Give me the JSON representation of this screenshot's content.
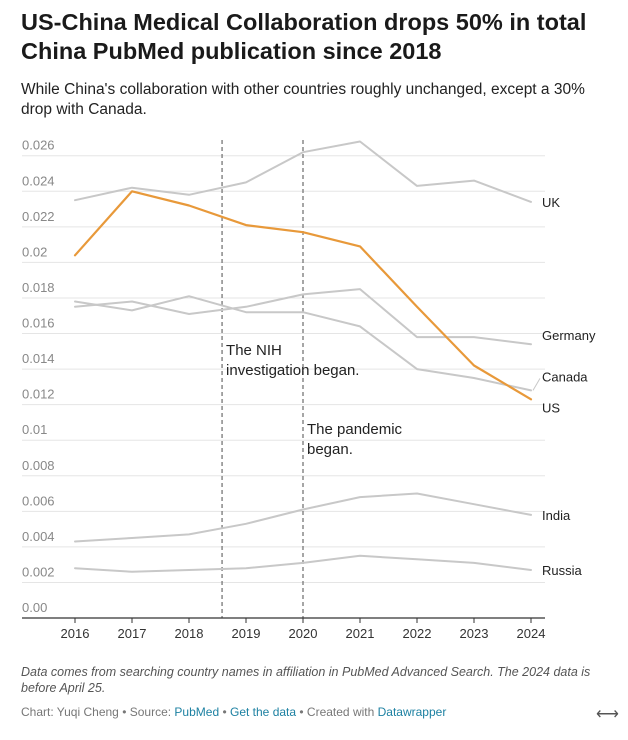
{
  "title": "US-China Medical Collaboration drops 50% in total China PubMed publication since 2018",
  "subtitle": "While China's collaboration with other countries roughly unchanged, except a 30% drop with Canada.",
  "note": "Data comes from searching country names in affiliation in PubMed Advanced Search. The 2024 data is before April 25.",
  "footer": {
    "chart_prefix": "Chart: Yuqi Cheng",
    "sep1": " • Source: ",
    "source_link": "PubMed",
    "sep2": " • ",
    "data_link": "Get the data",
    "sep3": " • Created with ",
    "tool_link": "Datawrapper"
  },
  "colors": {
    "highlight": "#e8993a",
    "other": "#c8c8c8",
    "grid": "#e5e5e5",
    "axis": "#333333",
    "tick_label": "#888888",
    "annotation_line": "#777777"
  },
  "chart_data": {
    "type": "line",
    "x": [
      2016,
      2017,
      2018,
      2019,
      2020,
      2021,
      2022,
      2023,
      2024
    ],
    "x_ticks": [
      "2016",
      "2017",
      "2018",
      "2019",
      "2020",
      "2021",
      "2022",
      "2023",
      "2024"
    ],
    "y_ticks": [
      "0.00",
      "0.002",
      "0.004",
      "0.006",
      "0.008",
      "0.01",
      "0.012",
      "0.014",
      "0.016",
      "0.018",
      "0.02",
      "0.022",
      "0.024",
      "0.026"
    ],
    "ylim": [
      0,
      0.027
    ],
    "grid": true,
    "series": [
      {
        "name": "UK",
        "values": [
          0.0235,
          0.0242,
          0.0238,
          0.0245,
          0.0262,
          0.0268,
          0.0243,
          0.0246,
          0.0234
        ],
        "highlight": false
      },
      {
        "name": "Germany",
        "values": [
          0.0175,
          0.0178,
          0.0171,
          0.0175,
          0.0182,
          0.0185,
          0.0158,
          0.0158,
          0.0154
        ],
        "highlight": false
      },
      {
        "name": "Canada",
        "values": [
          0.0178,
          0.0173,
          0.0181,
          0.0172,
          0.0172,
          0.0164,
          0.014,
          0.0135,
          0.0128
        ],
        "highlight": false
      },
      {
        "name": "India",
        "values": [
          0.0043,
          0.0045,
          0.0047,
          0.0053,
          0.0061,
          0.0068,
          0.007,
          0.0064,
          0.0058
        ],
        "highlight": false
      },
      {
        "name": "Russia",
        "values": [
          0.0028,
          0.0026,
          0.0027,
          0.0028,
          0.0031,
          0.0035,
          0.0033,
          0.0031,
          0.0027
        ],
        "highlight": false
      },
      {
        "name": "US",
        "values": [
          0.0204,
          0.024,
          0.0232,
          0.0221,
          0.0217,
          0.0209,
          0.0175,
          0.0142,
          0.0123
        ],
        "highlight": true
      }
    ],
    "annotations": [
      {
        "x": 2018.58,
        "text_lines": [
          "The NIH",
          "investigation began."
        ]
      },
      {
        "x": 2020.0,
        "text_lines": [
          "The pandemic",
          "began."
        ]
      }
    ]
  }
}
